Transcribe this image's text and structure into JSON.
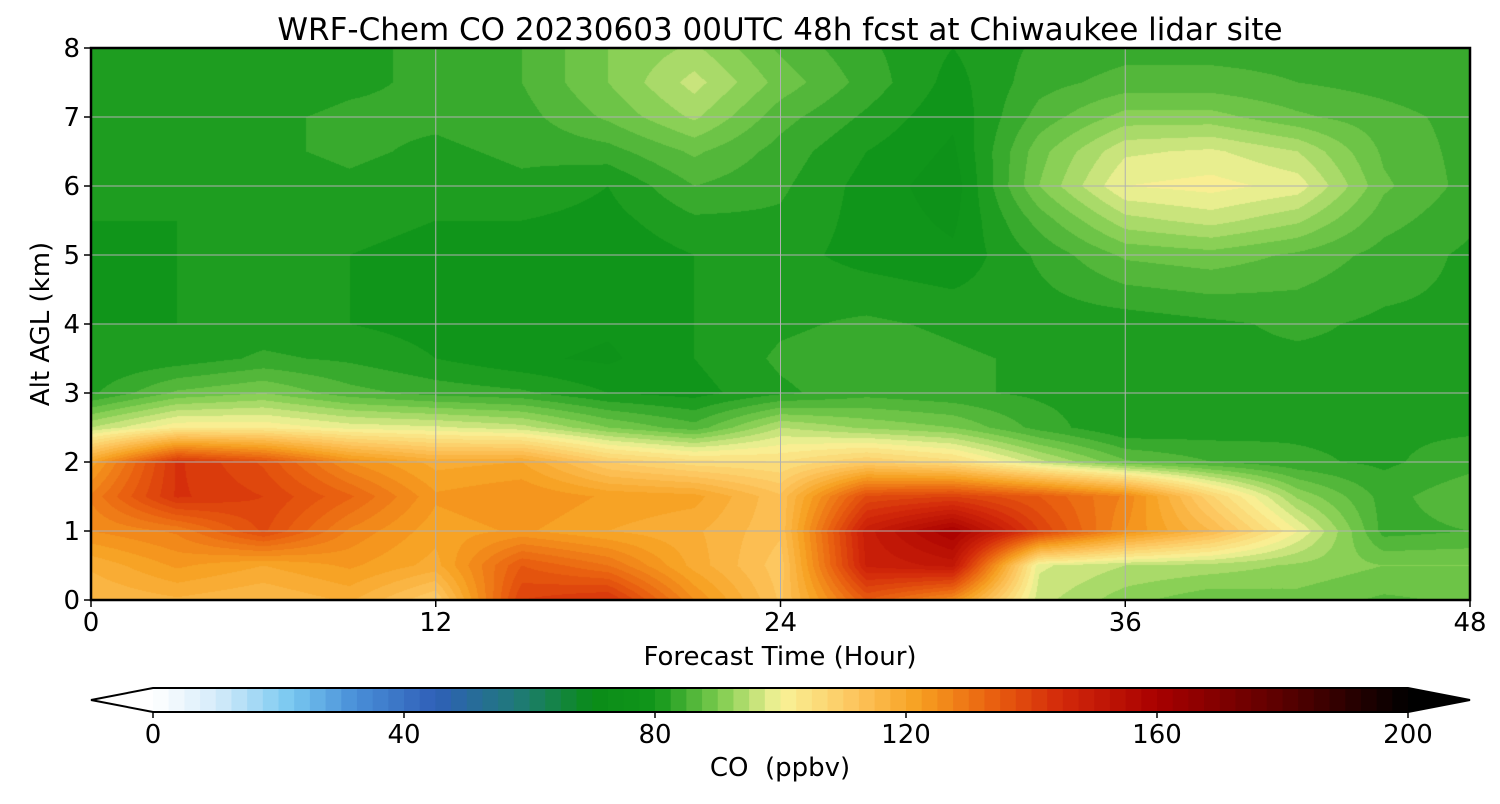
{
  "chart_data": {
    "type": "heatmap",
    "title": "WRF-Chem CO  20230603 00UTC 48h fcst at Chiwaukee lidar site",
    "xlabel": "Forecast Time (Hour)",
    "ylabel": "Alt AGL (km)",
    "xlim": [
      0,
      48
    ],
    "ylim": [
      0,
      8
    ],
    "x_ticks": [
      0,
      12,
      24,
      36,
      48
    ],
    "y_ticks": [
      0,
      1,
      2,
      3,
      4,
      5,
      6,
      7,
      8
    ],
    "grid": true,
    "colorbar": {
      "label": "CO  (ppbv)",
      "min": 0,
      "max": 200,
      "ticks": [
        0,
        40,
        80,
        120,
        160,
        200
      ],
      "extend": "both",
      "orientation": "horizontal",
      "colormap": [
        [
          0,
          "#ffffff"
        ],
        [
          10,
          "#d6ecfa"
        ],
        [
          22,
          "#78c8f0"
        ],
        [
          32,
          "#4a90d8"
        ],
        [
          45,
          "#2f5fb8"
        ],
        [
          58,
          "#1f7a78"
        ],
        [
          70,
          "#0a8c18"
        ],
        [
          80,
          "#11961a"
        ],
        [
          90,
          "#7acb4d"
        ],
        [
          100,
          "#f8f398"
        ],
        [
          112,
          "#fdc45c"
        ],
        [
          122,
          "#f7a021"
        ],
        [
          133,
          "#ea6410"
        ],
        [
          145,
          "#d3280a"
        ],
        [
          160,
          "#a80000"
        ],
        [
          180,
          "#5a0000"
        ],
        [
          200,
          "#000000"
        ]
      ]
    },
    "x_hours": [
      0,
      3,
      6,
      9,
      12,
      15,
      18,
      21,
      24,
      27,
      30,
      33,
      36,
      39,
      42,
      45,
      48
    ],
    "altitudes_km": [
      0,
      0.5,
      1,
      1.5,
      2,
      2.5,
      3,
      3.5,
      4,
      5,
      5.5,
      6,
      6.5,
      7,
      7.5,
      8
    ],
    "values": [
      [
        115,
        117,
        115,
        118,
        110,
        140,
        143,
        125,
        112,
        135,
        125,
        96,
        91,
        88,
        89,
        87,
        88
      ],
      [
        118,
        123,
        120,
        123,
        119,
        135,
        130,
        119,
        111,
        148,
        151,
        98,
        95,
        94,
        92,
        90,
        90
      ],
      [
        125,
        128,
        138,
        127,
        121,
        123,
        120,
        118,
        113,
        149,
        160,
        140,
        125,
        115,
        100,
        84,
        85
      ],
      [
        128,
        143,
        140,
        133,
        123,
        125,
        122,
        121,
        113,
        138,
        140,
        135,
        127,
        108,
        92,
        84,
        87
      ],
      [
        121,
        143,
        137,
        125,
        119,
        120,
        110,
        106,
        105,
        110,
        106,
        96,
        88,
        85,
        83,
        82,
        84
      ],
      [
        95,
        102,
        102,
        99,
        98,
        96,
        90,
        86,
        95,
        92,
        90,
        84,
        80,
        81,
        82,
        82,
        82
      ],
      [
        82,
        88,
        90,
        86,
        84,
        83,
        80,
        79,
        82,
        84,
        83,
        82,
        81,
        81,
        81,
        81,
        81
      ],
      [
        80,
        81,
        83,
        82,
        80,
        78,
        77,
        80,
        83,
        84,
        83,
        82,
        81,
        82,
        82,
        82,
        82
      ],
      [
        80,
        80,
        81,
        80,
        79,
        79,
        78,
        80,
        82,
        83,
        82,
        81,
        81,
        82,
        83,
        82,
        82
      ],
      [
        79,
        80,
        80,
        80,
        79,
        79,
        78,
        80,
        81,
        79,
        78,
        83,
        88,
        89,
        87,
        84,
        82
      ],
      [
        80,
        80,
        80,
        81,
        80,
        80,
        79,
        82,
        82,
        79,
        77,
        86,
        94,
        96,
        93,
        86,
        83
      ],
      [
        81,
        81,
        81,
        82,
        81,
        82,
        80,
        85,
        83,
        79,
        76,
        90,
        100,
        101,
        99,
        88,
        84
      ],
      [
        80,
        81,
        82,
        83,
        82,
        83,
        84,
        88,
        84,
        80,
        77,
        89,
        97,
        98,
        95,
        87,
        84
      ],
      [
        80,
        81,
        82,
        83,
        83,
        84,
        88,
        93,
        86,
        82,
        78,
        86,
        91,
        91,
        88,
        86,
        84
      ],
      [
        80,
        80,
        81,
        82,
        83,
        85,
        90,
        96,
        89,
        84,
        79,
        84,
        86,
        86,
        85,
        84,
        83
      ],
      [
        80,
        80,
        81,
        82,
        83,
        85,
        90,
        93,
        87,
        83,
        80,
        83,
        84,
        84,
        84,
        83,
        83
      ]
    ]
  }
}
